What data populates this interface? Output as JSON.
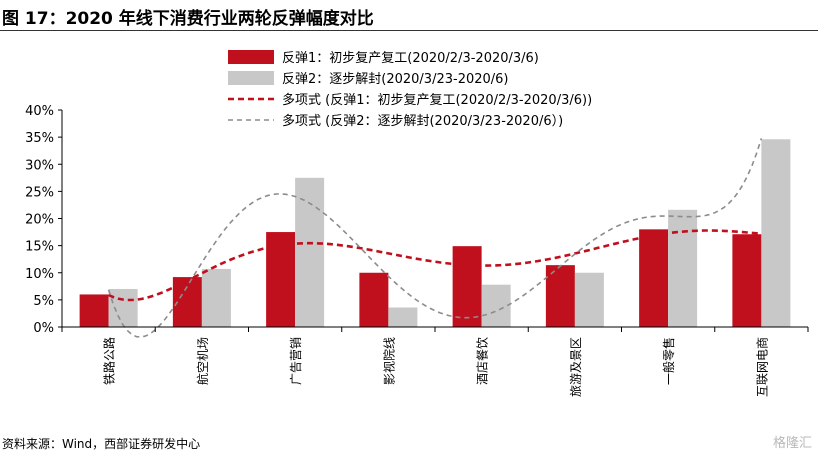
{
  "title": "图 17：2020 年线下消费行业两轮反弹幅度对比",
  "source": "资料来源：Wind，西部证券研发中心",
  "watermark": "格隆汇",
  "chart_data": {
    "type": "bar",
    "categories": [
      "铁路公路",
      "航空机场",
      "广告营销",
      "影视院线",
      "酒店餐饮",
      "旅游及景区",
      "一般零售",
      "互联网电商"
    ],
    "series": [
      {
        "name": "反弹1：初步复产复工(2020/2/3-2020/3/6)",
        "values": [
          0.06,
          0.092,
          0.175,
          0.1,
          0.149,
          0.114,
          0.18,
          0.171
        ],
        "color": "#c0101e"
      },
      {
        "name": "反弹2：逐步解封(2020/3/23-2020/6)",
        "values": [
          0.07,
          0.107,
          0.275,
          0.036,
          0.078,
          0.1,
          0.216,
          0.346
        ],
        "color": "#c8c8c8"
      }
    ],
    "trendlines": [
      {
        "name": "多项式 (反弹1：初步复产复工(2020/2/3-2020/3/6))",
        "style": "dashed",
        "color": "#c0101e"
      },
      {
        "name": "多项式 (反弹2：逐步解封(2020/3/23-2020/6）)",
        "style": "dashed",
        "color": "#8c8c8c"
      }
    ],
    "ylim": [
      0,
      0.4
    ],
    "yticks": [
      0,
      0.05,
      0.1,
      0.15,
      0.2,
      0.25,
      0.3,
      0.35,
      0.4
    ],
    "ytick_labels": [
      "0%",
      "5%",
      "10%",
      "15%",
      "20%",
      "25%",
      "30%",
      "35%",
      "40%"
    ],
    "xlabel": "",
    "ylabel": "",
    "legend_position": "top-right",
    "grid": false
  }
}
